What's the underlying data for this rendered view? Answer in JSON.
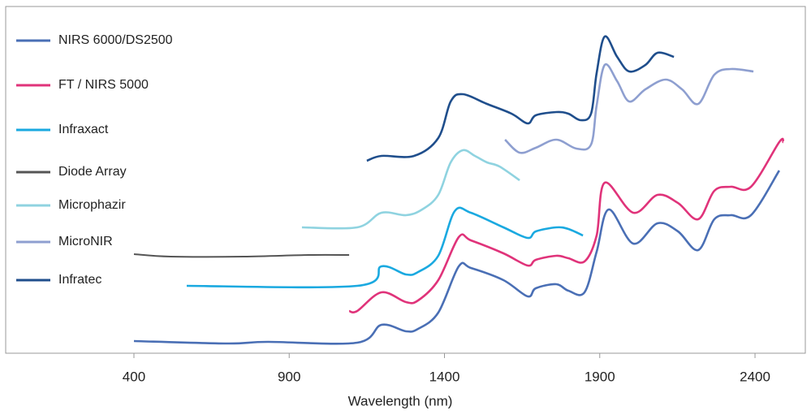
{
  "chart_data": {
    "type": "line",
    "x_label": "Wavelength (nm)",
    "xlim": [
      -13,
      2562
    ],
    "ylim": [
      0,
      427
    ],
    "xticks": [
      400,
      900,
      1400,
      1900,
      2400
    ],
    "series": [
      {
        "name": "NIRS 6000/DS2500",
        "color": "#4a6fb5",
        "x": [
          400,
          700,
          831,
          1119,
          1197,
          1276,
          1315,
          1380,
          1446,
          1485,
          1590,
          1668,
          1694,
          1760,
          1799,
          1851,
          1890,
          1929,
          2008,
          2086,
          2152,
          2217,
          2269,
          2322,
          2387,
          2478
        ],
        "values": [
          15,
          12,
          14,
          13,
          35,
          27,
          30,
          50,
          107,
          105,
          90,
          70,
          80,
          85,
          77,
          75,
          125,
          177,
          135,
          160,
          150,
          127,
          165,
          170,
          170,
          225
        ]
      },
      {
        "name": "FT / NIRS 5000",
        "color": "#e0337a",
        "x": [
          1093,
          1119,
          1197,
          1276,
          1315,
          1380,
          1446,
          1485,
          1590,
          1668,
          1694,
          1760,
          1799,
          1851,
          1890,
          1916,
          2008,
          2086,
          2152,
          2217,
          2269,
          2322,
          2387,
          2478,
          2491
        ],
        "values": [
          52,
          52,
          75,
          63,
          65,
          90,
          143,
          139,
          123,
          108,
          115,
          120,
          117,
          113,
          145,
          210,
          173,
          195,
          185,
          165,
          200,
          205,
          205,
          260,
          260
        ]
      },
      {
        "name": "Infraxact",
        "color": "#1aa9e0",
        "x": [
          570,
          1119,
          1197,
          1276,
          1315,
          1380,
          1433,
          1485,
          1590,
          1668,
          1694,
          1760,
          1799,
          1846
        ],
        "values": [
          83,
          83,
          107,
          97,
          100,
          120,
          175,
          173,
          155,
          142,
          150,
          155,
          153,
          145
        ]
      },
      {
        "name": "Diode Array",
        "color": "#555555",
        "x": [
          400,
          518,
          753,
          962,
          1093
        ],
        "values": [
          122,
          119,
          119,
          121,
          121
        ]
      },
      {
        "name": "Microphazir",
        "color": "#8fd3e0",
        "x": [
          941,
          1119,
          1197,
          1276,
          1328,
          1380,
          1420,
          1459,
          1498,
          1537,
          1577,
          1642
        ],
        "values": [
          155,
          155,
          173,
          170,
          177,
          195,
          235,
          250,
          243,
          235,
          230,
          213
        ]
      },
      {
        "name": "MicroNIR",
        "color": "#8e9fd0",
        "x": [
          1595,
          1642,
          1694,
          1760,
          1825,
          1872,
          1890,
          1916,
          1956,
          1995,
          2047,
          2112,
          2165,
          2217,
          2269,
          2322,
          2395
        ],
        "values": [
          263,
          247,
          253,
          263,
          252,
          257,
          305,
          355,
          335,
          310,
          325,
          337,
          325,
          307,
          343,
          350,
          347
        ]
      },
      {
        "name": "Infratec",
        "color": "#1f4e8c",
        "x": [
          1150,
          1197,
          1302,
          1380,
          1420,
          1459,
          1537,
          1616,
          1668,
          1694,
          1760,
          1799,
          1838,
          1872,
          1890,
          1916,
          1956,
          1995,
          2047,
          2086,
          2139
        ],
        "values": [
          237,
          243,
          243,
          265,
          310,
          319,
          307,
          295,
          283,
          293,
          297,
          295,
          287,
          295,
          345,
          390,
          365,
          347,
          355,
          370,
          365
        ]
      }
    ]
  }
}
